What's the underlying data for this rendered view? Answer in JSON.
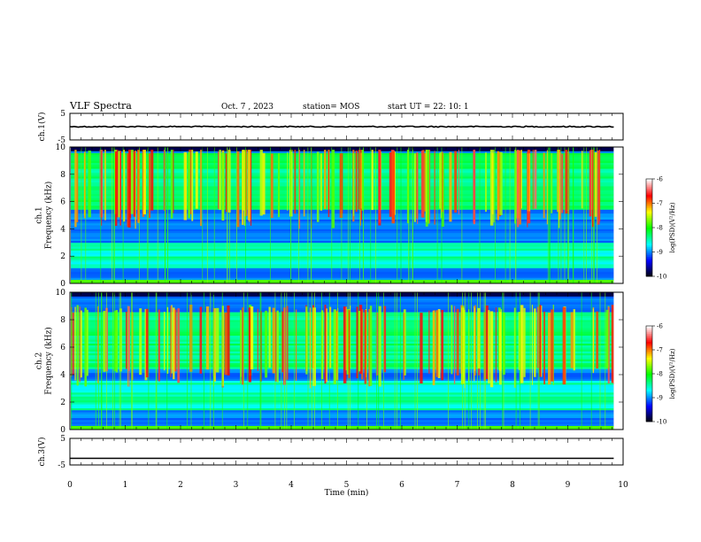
{
  "header": {
    "title": "VLF Spectra",
    "date": "Oct. 7 , 2023",
    "station": "station= MOS",
    "start": "start  UT =   22: 10: 1"
  },
  "chart_data": [
    {
      "type": "line",
      "name": "ch1-voltage",
      "ylabel": "ch.1(V)",
      "ylim": [
        -5,
        5
      ],
      "yticks": [
        "5",
        "-5"
      ],
      "x": [
        0,
        9.83
      ],
      "values": [
        0,
        0
      ]
    },
    {
      "type": "heatmap",
      "name": "ch1-spectrogram",
      "ylabel": "ch.1\nFrequency (kHz)",
      "ylim": [
        0,
        10
      ],
      "yticks": [
        "0",
        "2",
        "4",
        "6",
        "8",
        "10"
      ],
      "xlim": [
        0,
        9.83
      ],
      "colorbar": {
        "label": "log(PSD)(V²/Hz)",
        "range": [
          -10,
          -6
        ],
        "ticks": [
          "-6",
          "-7",
          "-8",
          "-9",
          "-10"
        ],
        "colors": [
          "#000000",
          "#0000ff",
          "#00ffff",
          "#00ff00",
          "#ffff00",
          "#ff0000",
          "#ffffff"
        ]
      },
      "emission_band_khz": [
        5.5,
        9.5
      ],
      "hum_band_khz": [
        1.2,
        3.0
      ]
    },
    {
      "type": "heatmap",
      "name": "ch2-spectrogram",
      "ylabel": "ch.2\nFrequency (kHz)",
      "ylim": [
        0,
        10
      ],
      "yticks": [
        "0",
        "2",
        "4",
        "6",
        "8",
        "10"
      ],
      "xlim": [
        0,
        9.83
      ],
      "colorbar": {
        "label": "log(PSD)(V²/Hz)",
        "range": [
          -10,
          -6
        ],
        "ticks": [
          "-6",
          "-7",
          "-8",
          "-9",
          "-10"
        ],
        "colors": [
          "#000000",
          "#0000ff",
          "#00ffff",
          "#00ff00",
          "#ffff00",
          "#ff0000",
          "#ffffff"
        ]
      },
      "emission_band_khz": [
        4.5,
        8.5
      ],
      "hum_band_khz": [
        1.5,
        3.5
      ]
    },
    {
      "type": "line",
      "name": "ch3-voltage",
      "ylabel": "ch.3(V)",
      "ylim": [
        -5,
        5
      ],
      "yticks": [
        "5",
        "-5"
      ],
      "x": [
        0,
        9.83
      ],
      "values": [
        -2.5,
        -2.5
      ]
    }
  ],
  "xaxis": {
    "label": "Time  (min)",
    "range": [
      0,
      10
    ],
    "ticks": [
      "0",
      "1",
      "2",
      "3",
      "4",
      "5",
      "6",
      "7",
      "8",
      "9",
      "10"
    ]
  }
}
